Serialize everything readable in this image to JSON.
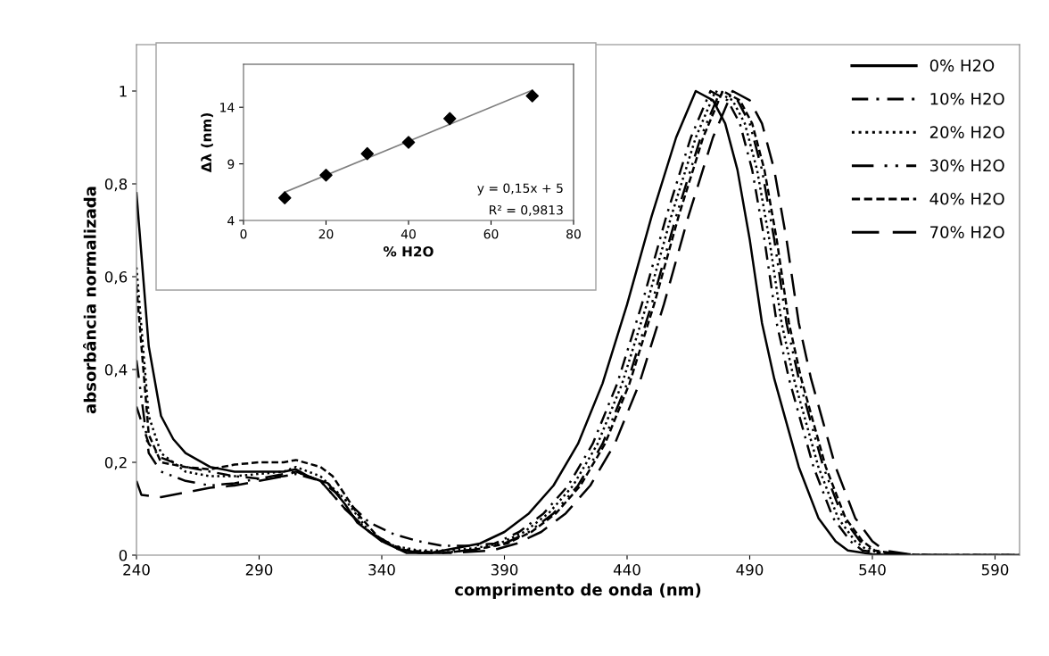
{
  "chart_data": [
    {
      "type": "line",
      "xlabel": "comprimento de onda (nm)",
      "ylabel": "absorbância normalizada",
      "xlim": [
        240,
        600
      ],
      "xticks": [
        240,
        290,
        340,
        390,
        440,
        490,
        540,
        590
      ],
      "ylim": [
        0,
        1.1
      ],
      "yticks": [
        0,
        {
          "value": 0.2,
          "label": "0,2"
        },
        {
          "value": 0.4,
          "label": "0,4"
        },
        {
          "value": 0.6,
          "label": "0,6"
        },
        {
          "value": 0.8,
          "label": "0,8"
        },
        1
      ],
      "grid": false,
      "legend": "top right",
      "marker": "none",
      "series": [
        {
          "name": "0% H2O",
          "color": "#000000",
          "line_style": "solid",
          "x": [
            240,
            245,
            250,
            255,
            260,
            270,
            280,
            290,
            300,
            305,
            310,
            318,
            325,
            330,
            340,
            350,
            360,
            370,
            380,
            390,
            400,
            410,
            420,
            430,
            440,
            450,
            460,
            468,
            475,
            480,
            485,
            490,
            495,
            500,
            505,
            510,
            518,
            525,
            530,
            540,
            550,
            600
          ],
          "values": [
            0.78,
            0.45,
            0.3,
            0.25,
            0.22,
            0.19,
            0.18,
            0.18,
            0.18,
            0.185,
            0.17,
            0.155,
            0.11,
            0.07,
            0.03,
            0.005,
            0.005,
            0.015,
            0.025,
            0.05,
            0.09,
            0.15,
            0.24,
            0.37,
            0.54,
            0.73,
            0.9,
            1.0,
            0.98,
            0.93,
            0.83,
            0.68,
            0.5,
            0.38,
            0.285,
            0.19,
            0.08,
            0.03,
            0.01,
            0.002,
            0,
            0
          ]
        },
        {
          "name": "10% H2O",
          "color": "#000000",
          "line_style": "dashdot",
          "x": [
            240,
            245,
            250,
            260,
            270,
            280,
            290,
            300,
            305,
            315,
            325,
            335,
            345,
            355,
            365,
            375,
            386,
            396,
            406,
            416,
            426,
            436,
            446,
            456,
            466,
            474,
            481,
            486,
            491,
            496,
            501,
            506,
            511,
            516,
            524,
            531,
            536,
            546,
            556,
            600
          ],
          "values": [
            0.32,
            0.24,
            0.21,
            0.19,
            0.18,
            0.17,
            0.165,
            0.17,
            0.175,
            0.16,
            0.12,
            0.07,
            0.045,
            0.03,
            0.02,
            0.02,
            0.025,
            0.05,
            0.09,
            0.15,
            0.24,
            0.37,
            0.54,
            0.73,
            0.9,
            1.0,
            0.98,
            0.93,
            0.83,
            0.68,
            0.5,
            0.38,
            0.285,
            0.19,
            0.08,
            0.03,
            0.01,
            0.002,
            0,
            0
          ]
        },
        {
          "name": "20% H2O",
          "color": "#000000",
          "line_style": "dotted",
          "x": [
            240,
            245,
            250,
            260,
            270,
            280,
            290,
            300,
            305,
            315,
            325,
            335,
            345,
            355,
            365,
            378,
            388,
            398,
            408,
            418,
            428,
            438,
            448,
            458,
            468,
            476,
            483,
            488,
            493,
            498,
            503,
            508,
            513,
            518,
            526,
            533,
            538,
            548,
            558,
            600
          ],
          "values": [
            0.62,
            0.3,
            0.22,
            0.18,
            0.17,
            0.17,
            0.175,
            0.18,
            0.19,
            0.17,
            0.12,
            0.05,
            0.02,
            0.01,
            0.01,
            0.015,
            0.025,
            0.05,
            0.09,
            0.15,
            0.24,
            0.37,
            0.54,
            0.73,
            0.9,
            1.0,
            0.98,
            0.93,
            0.83,
            0.68,
            0.5,
            0.38,
            0.285,
            0.19,
            0.08,
            0.03,
            0.01,
            0.002,
            0,
            0
          ]
        },
        {
          "name": "30% H2O",
          "color": "#000000",
          "line_style": "dashdotdot",
          "x": [
            240,
            245,
            250,
            260,
            270,
            280,
            290,
            300,
            305,
            315,
            325,
            335,
            345,
            355,
            365,
            378,
            390,
            400,
            410,
            420,
            430,
            440,
            450,
            460,
            470,
            478,
            485,
            490,
            495,
            500,
            505,
            510,
            515,
            520,
            528,
            535,
            540,
            550,
            560,
            600
          ],
          "values": [
            0.42,
            0.22,
            0.18,
            0.16,
            0.15,
            0.155,
            0.165,
            0.175,
            0.18,
            0.16,
            0.1,
            0.05,
            0.02,
            0.005,
            0.005,
            0.012,
            0.025,
            0.05,
            0.09,
            0.15,
            0.24,
            0.37,
            0.54,
            0.73,
            0.9,
            1.0,
            0.98,
            0.93,
            0.83,
            0.68,
            0.5,
            0.38,
            0.285,
            0.19,
            0.08,
            0.03,
            0.01,
            0.002,
            0,
            0
          ]
        },
        {
          "name": "40% H2O",
          "color": "#000000",
          "line_style": "shortdash",
          "x": [
            240,
            245,
            250,
            260,
            270,
            280,
            290,
            300,
            305,
            315,
            320,
            330,
            340,
            350,
            365,
            378,
            391,
            401,
            411,
            421,
            431,
            441,
            451,
            461,
            471,
            479,
            486,
            491,
            496,
            501,
            506,
            511,
            516,
            521,
            529,
            536,
            541,
            551,
            561,
            600
          ],
          "values": [
            0.58,
            0.26,
            0.2,
            0.19,
            0.185,
            0.195,
            0.2,
            0.2,
            0.205,
            0.19,
            0.17,
            0.09,
            0.03,
            0.01,
            0.005,
            0.012,
            0.025,
            0.05,
            0.09,
            0.15,
            0.24,
            0.37,
            0.54,
            0.73,
            0.9,
            1.0,
            0.98,
            0.93,
            0.83,
            0.68,
            0.5,
            0.38,
            0.285,
            0.19,
            0.08,
            0.03,
            0.01,
            0.002,
            0,
            0
          ]
        },
        {
          "name": "70% H2O",
          "color": "#000000",
          "line_style": "longdash",
          "x": [
            240,
            242,
            250,
            260,
            270,
            280,
            290,
            300,
            305,
            315,
            325,
            335,
            345,
            355,
            370,
            385,
            395,
            405,
            415,
            425,
            435,
            445,
            455,
            465,
            475,
            483,
            490,
            495,
            500,
            505,
            510,
            515,
            520,
            525,
            533,
            540,
            545,
            555,
            565,
            600
          ],
          "values": [
            0.16,
            0.13,
            0.125,
            0.135,
            0.145,
            0.15,
            0.16,
            0.17,
            0.18,
            0.16,
            0.1,
            0.05,
            0.015,
            0.005,
            0.005,
            0.01,
            0.025,
            0.05,
            0.09,
            0.15,
            0.24,
            0.37,
            0.54,
            0.73,
            0.9,
            1.0,
            0.98,
            0.93,
            0.83,
            0.68,
            0.5,
            0.38,
            0.285,
            0.19,
            0.08,
            0.03,
            0.01,
            0.002,
            0,
            0
          ]
        }
      ]
    },
    {
      "type": "scatter",
      "xlabel": "% H2O",
      "ylabel": "Δλ (nm)",
      "xlim": [
        0,
        80
      ],
      "xticks": [
        0,
        20,
        40,
        60,
        80
      ],
      "ylim": [
        4,
        17.8
      ],
      "yticks": [
        4,
        9,
        14
      ],
      "grid": false,
      "annotations": [
        "y = 0,15x + 5",
        "R² = 0,9813"
      ],
      "series": [
        {
          "color": "#000000",
          "marker": "diamond",
          "x": [
            10,
            20,
            30,
            40,
            50,
            70
          ],
          "values": [
            6.0,
            8.0,
            9.9,
            10.9,
            13.0,
            15.0
          ]
        },
        {
          "type": "line",
          "marker": "none",
          "color": "#808080",
          "x": [
            10,
            70
          ],
          "values": [
            6.5,
            15.5
          ]
        }
      ]
    }
  ]
}
